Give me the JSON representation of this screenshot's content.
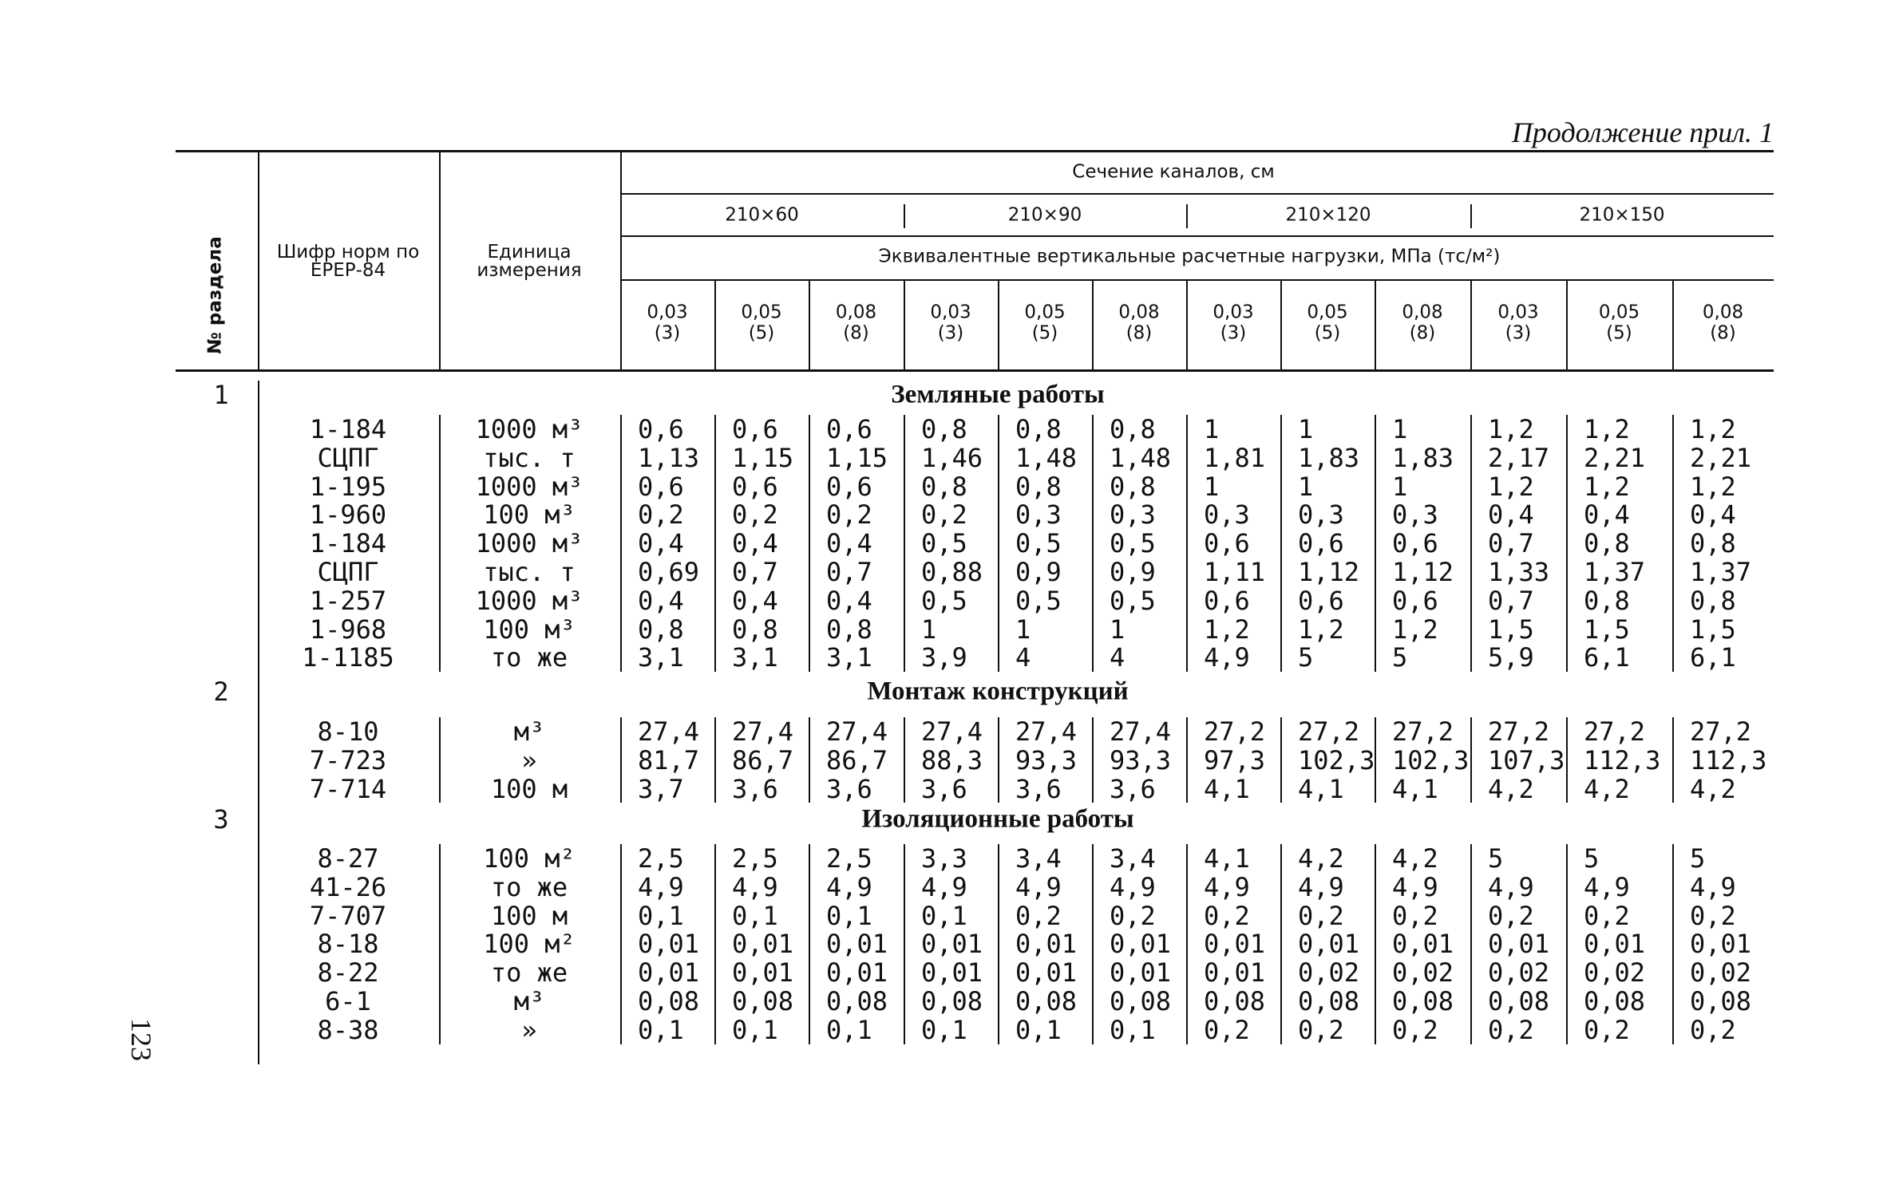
{
  "header": {
    "title": "Продолжение прил. 1"
  },
  "page_number": "123",
  "table": {
    "head": {
      "section_no": "№ раздела",
      "code": "Шифр норм по ЕРЕР-84",
      "unit": "Единица измерения",
      "group": "Сечение каналов, см",
      "sections": [
        "210×60",
        "210×90",
        "210×120",
        "210×150"
      ],
      "load_title": "Эквивалентные вертикальные расчетные нагрузки, МПа (тс/м²)",
      "loads": [
        [
          "0,03",
          "(3)"
        ],
        [
          "0,05",
          "(5)"
        ],
        [
          "0,08",
          "(8)"
        ],
        [
          "0,03",
          "(3)"
        ],
        [
          "0,05",
          "(5)"
        ],
        [
          "0,08",
          "(8)"
        ],
        [
          "0,03",
          "(3)"
        ],
        [
          "0,05",
          "(5)"
        ],
        [
          "0,08",
          "(8)"
        ],
        [
          "0,03",
          "(3)"
        ],
        [
          "0,05",
          "(5)"
        ],
        [
          "0,08",
          "(8)"
        ]
      ]
    },
    "sections": [
      {
        "number": "1",
        "title": "Земляные работы",
        "rows": [
          {
            "code": "1-184",
            "unit": "1000 м³",
            "values": [
              "0,6",
              "0,6",
              "0,6",
              "0,8",
              "0,8",
              "0,8",
              "1",
              "1",
              "1",
              "1,2",
              "1,2",
              "1,2"
            ]
          },
          {
            "code": "СЦПГ",
            "unit": "тыс. т",
            "values": [
              "1,13",
              "1,15",
              "1,15",
              "1,46",
              "1,48",
              "1,48",
              "1,81",
              "1,83",
              "1,83",
              "2,17",
              "2,21",
              "2,21"
            ]
          },
          {
            "code": "1-195",
            "unit": "1000 м³",
            "values": [
              "0,6",
              "0,6",
              "0,6",
              "0,8",
              "0,8",
              "0,8",
              "1",
              "1",
              "1",
              "1,2",
              "1,2",
              "1,2"
            ]
          },
          {
            "code": "1-960",
            "unit": "100 м³",
            "values": [
              "0,2",
              "0,2",
              "0,2",
              "0,2",
              "0,3",
              "0,3",
              "0,3",
              "0,3",
              "0,3",
              "0,4",
              "0,4",
              "0,4"
            ]
          },
          {
            "code": "1-184",
            "unit": "1000 м³",
            "values": [
              "0,4",
              "0,4",
              "0,4",
              "0,5",
              "0,5",
              "0,5",
              "0,6",
              "0,6",
              "0,6",
              "0,7",
              "0,8",
              "0,8"
            ]
          },
          {
            "code": "СЦПГ",
            "unit": "тыс. т",
            "values": [
              "0,69",
              "0,7",
              "0,7",
              "0,88",
              "0,9",
              "0,9",
              "1,11",
              "1,12",
              "1,12",
              "1,33",
              "1,37",
              "1,37"
            ]
          },
          {
            "code": "1-257",
            "unit": "1000 м³",
            "values": [
              "0,4",
              "0,4",
              "0,4",
              "0,5",
              "0,5",
              "0,5",
              "0,6",
              "0,6",
              "0,6",
              "0,7",
              "0,8",
              "0,8"
            ]
          },
          {
            "code": "1-968",
            "unit": "100 м³",
            "values": [
              "0,8",
              "0,8",
              "0,8",
              "1",
              "1",
              "1",
              "1,2",
              "1,2",
              "1,2",
              "1,5",
              "1,5",
              "1,5"
            ]
          },
          {
            "code": "1-1185",
            "unit": "то же",
            "values": [
              "3,1",
              "3,1",
              "3,1",
              "3,9",
              "4",
              "4",
              "4,9",
              "5",
              "5",
              "5,9",
              "6,1",
              "6,1"
            ]
          }
        ]
      },
      {
        "number": "2",
        "title": "Монтаж конструкций",
        "rows": [
          {
            "code": "8-10",
            "unit": "м³",
            "values": [
              "27,4",
              "27,4",
              "27,4",
              "27,4",
              "27,4",
              "27,4",
              "27,2",
              "27,2",
              "27,2",
              "27,2",
              "27,2",
              "27,2"
            ]
          },
          {
            "code": "7-723",
            "unit": "»",
            "values": [
              "81,7",
              "86,7",
              "86,7",
              "88,3",
              "93,3",
              "93,3",
              "97,3",
              "102,3",
              "102,3",
              "107,3",
              "112,3",
              "112,3"
            ]
          },
          {
            "code": "7-714",
            "unit": "100 м",
            "values": [
              "3,7",
              "3,6",
              "3,6",
              "3,6",
              "3,6",
              "3,6",
              "4,1",
              "4,1",
              "4,1",
              "4,2",
              "4,2",
              "4,2"
            ]
          }
        ]
      },
      {
        "number": "3",
        "title": "Изоляционные работы",
        "rows": [
          {
            "code": "8-27",
            "unit": "100 м²",
            "values": [
              "2,5",
              "2,5",
              "2,5",
              "3,3",
              "3,4",
              "3,4",
              "4,1",
              "4,2",
              "4,2",
              "5",
              "5",
              "5"
            ]
          },
          {
            "code": "41-26",
            "unit": "то же",
            "values": [
              "4,9",
              "4,9",
              "4,9",
              "4,9",
              "4,9",
              "4,9",
              "4,9",
              "4,9",
              "4,9",
              "4,9",
              "4,9",
              "4,9"
            ]
          },
          {
            "code": "7-707",
            "unit": "100 м",
            "values": [
              "0,1",
              "0,1",
              "0,1",
              "0,1",
              "0,2",
              "0,2",
              "0,2",
              "0,2",
              "0,2",
              "0,2",
              "0,2",
              "0,2"
            ]
          },
          {
            "code": "8-18",
            "unit": "100 м²",
            "values": [
              "0,01",
              "0,01",
              "0,01",
              "0,01",
              "0,01",
              "0,01",
              "0,01",
              "0,01",
              "0,01",
              "0,01",
              "0,01",
              "0,01"
            ]
          },
          {
            "code": "8-22",
            "unit": "то же",
            "values": [
              "0,01",
              "0,01",
              "0,01",
              "0,01",
              "0,01",
              "0,01",
              "0,01",
              "0,02",
              "0,02",
              "0,02",
              "0,02",
              "0,02"
            ]
          },
          {
            "code": "6-1",
            "unit": "м³",
            "values": [
              "0,08",
              "0,08",
              "0,08",
              "0,08",
              "0,08",
              "0,08",
              "0,08",
              "0,08",
              "0,08",
              "0,08",
              "0,08",
              "0,08"
            ]
          },
          {
            "code": "8-38",
            "unit": "»",
            "values": [
              "0,1",
              "0,1",
              "0,1",
              "0,1",
              "0,1",
              "0,1",
              "0,2",
              "0,2",
              "0,2",
              "0,2",
              "0,2",
              "0,2"
            ]
          }
        ]
      }
    ]
  }
}
